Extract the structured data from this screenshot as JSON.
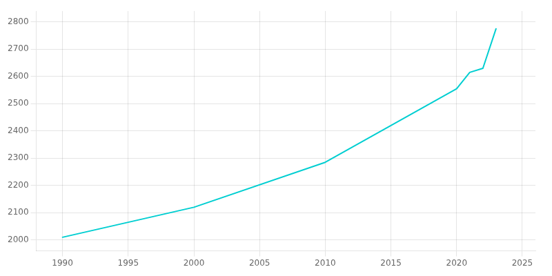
{
  "chart_data": {
    "type": "line",
    "x": [
      1990,
      2000,
      2010,
      2020,
      2021,
      2022,
      2023
    ],
    "values": [
      2010,
      2120,
      2285,
      2555,
      2615,
      2630,
      2775
    ],
    "color": "#00CED1",
    "xlim": [
      1988,
      2026
    ],
    "ylim": [
      1960,
      2840
    ],
    "xticks": [
      1990,
      1995,
      2000,
      2005,
      2010,
      2015,
      2020,
      2025
    ],
    "yticks": [
      2000,
      2100,
      2200,
      2300,
      2400,
      2500,
      2600,
      2700,
      2800
    ],
    "grid": true
  }
}
